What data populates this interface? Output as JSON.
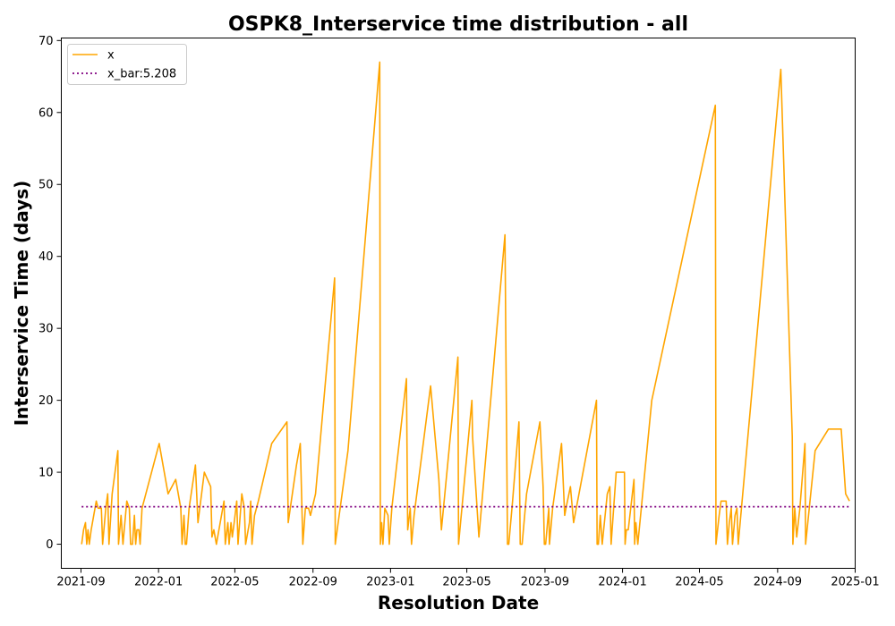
{
  "chart_data": {
    "type": "line",
    "title": "OSPK8_Interservice time distribution - all",
    "xlabel": "Resolution Date",
    "ylabel": "Interservice Time (days)",
    "x_axis_type": "date",
    "xlim": [
      "2021-08-01",
      "2025-01-01"
    ],
    "ylim": [
      -3.35,
      70.35
    ],
    "x_ticks": [
      "2021-09",
      "2022-01",
      "2022-05",
      "2022-09",
      "2023-01",
      "2023-05",
      "2023-09",
      "2024-01",
      "2024-05",
      "2024-09",
      "2025-01"
    ],
    "y_ticks": [
      0,
      10,
      20,
      30,
      40,
      50,
      60,
      70
    ],
    "grid": false,
    "legend_position": "top-left",
    "series": [
      {
        "name": "x",
        "color": "#ffa500",
        "style": "solid",
        "points": [
          [
            "2021-09-02",
            0
          ],
          [
            "2021-09-05",
            2
          ],
          [
            "2021-09-08",
            3
          ],
          [
            "2021-09-10",
            0
          ],
          [
            "2021-09-12",
            2
          ],
          [
            "2021-09-14",
            0
          ],
          [
            "2021-09-17",
            2
          ],
          [
            "2021-09-25",
            6
          ],
          [
            "2021-09-28",
            5
          ],
          [
            "2021-10-03",
            5
          ],
          [
            "2021-10-05",
            0
          ],
          [
            "2021-10-10",
            5
          ],
          [
            "2021-10-13",
            7
          ],
          [
            "2021-10-15",
            0
          ],
          [
            "2021-10-20",
            7
          ],
          [
            "2021-10-29",
            13
          ],
          [
            "2021-10-30",
            0
          ],
          [
            "2021-11-03",
            4
          ],
          [
            "2021-11-06",
            0
          ],
          [
            "2021-11-12",
            6
          ],
          [
            "2021-11-16",
            5
          ],
          [
            "2021-11-18",
            0
          ],
          [
            "2021-11-21",
            0
          ],
          [
            "2021-11-24",
            4
          ],
          [
            "2021-11-26",
            0
          ],
          [
            "2021-11-28",
            2
          ],
          [
            "2021-12-01",
            2
          ],
          [
            "2021-12-03",
            0
          ],
          [
            "2021-12-06",
            5
          ],
          [
            "2022-01-02",
            14
          ],
          [
            "2022-01-16",
            7
          ],
          [
            "2022-01-28",
            9
          ],
          [
            "2022-02-05",
            5
          ],
          [
            "2022-02-07",
            0
          ],
          [
            "2022-02-10",
            4
          ],
          [
            "2022-02-12",
            0
          ],
          [
            "2022-02-14",
            0
          ],
          [
            "2022-02-18",
            5
          ],
          [
            "2022-02-28",
            11
          ],
          [
            "2022-03-04",
            3
          ],
          [
            "2022-03-14",
            10
          ],
          [
            "2022-03-24",
            8
          ],
          [
            "2022-03-26",
            1
          ],
          [
            "2022-03-29",
            2
          ],
          [
            "2022-04-02",
            0
          ],
          [
            "2022-04-06",
            2
          ],
          [
            "2022-04-14",
            6
          ],
          [
            "2022-04-16",
            0
          ],
          [
            "2022-04-20",
            3
          ],
          [
            "2022-04-22",
            0
          ],
          [
            "2022-04-25",
            3
          ],
          [
            "2022-04-27",
            1
          ],
          [
            "2022-04-30",
            3
          ],
          [
            "2022-05-04",
            6
          ],
          [
            "2022-05-06",
            0
          ],
          [
            "2022-05-12",
            7
          ],
          [
            "2022-05-16",
            5
          ],
          [
            "2022-05-18",
            0
          ],
          [
            "2022-05-24",
            3
          ],
          [
            "2022-05-26",
            6
          ],
          [
            "2022-05-28",
            0
          ],
          [
            "2022-06-01",
            4
          ],
          [
            "2022-06-07",
            6
          ],
          [
            "2022-06-28",
            14
          ],
          [
            "2022-07-22",
            17
          ],
          [
            "2022-07-24",
            3
          ],
          [
            "2022-08-06",
            11
          ],
          [
            "2022-08-12",
            14
          ],
          [
            "2022-08-16",
            0
          ],
          [
            "2022-08-20",
            5
          ],
          [
            "2022-08-25",
            5
          ],
          [
            "2022-08-28",
            4
          ],
          [
            "2022-09-05",
            7
          ],
          [
            "2022-10-05",
            37
          ],
          [
            "2022-10-06",
            0
          ],
          [
            "2022-10-26",
            13
          ],
          [
            "2022-12-15",
            67
          ],
          [
            "2022-12-16",
            0
          ],
          [
            "2022-12-18",
            3
          ],
          [
            "2022-12-20",
            0
          ],
          [
            "2022-12-23",
            5
          ],
          [
            "2022-12-28",
            4
          ],
          [
            "2022-12-30",
            0
          ],
          [
            "2023-01-03",
            5
          ],
          [
            "2023-01-26",
            23
          ],
          [
            "2023-01-28",
            2
          ],
          [
            "2023-02-01",
            5
          ],
          [
            "2023-02-03",
            0
          ],
          [
            "2023-02-07",
            4
          ],
          [
            "2023-03-05",
            22
          ],
          [
            "2023-03-18",
            9
          ],
          [
            "2023-03-22",
            2
          ],
          [
            "2023-04-17",
            26
          ],
          [
            "2023-04-18",
            0
          ],
          [
            "2023-05-09",
            20
          ],
          [
            "2023-05-10",
            15
          ],
          [
            "2023-05-20",
            1
          ],
          [
            "2023-06-30",
            43
          ],
          [
            "2023-07-04",
            0
          ],
          [
            "2023-07-06",
            0
          ],
          [
            "2023-07-12",
            6
          ],
          [
            "2023-07-22",
            17
          ],
          [
            "2023-07-24",
            0
          ],
          [
            "2023-07-27",
            0
          ],
          [
            "2023-08-03",
            7
          ],
          [
            "2023-08-24",
            17
          ],
          [
            "2023-08-29",
            8
          ],
          [
            "2023-08-31",
            0
          ],
          [
            "2023-09-02",
            0
          ],
          [
            "2023-09-04",
            2
          ],
          [
            "2023-09-07",
            5
          ],
          [
            "2023-09-08",
            0
          ],
          [
            "2023-09-13",
            5
          ],
          [
            "2023-09-27",
            14
          ],
          [
            "2023-10-02",
            4
          ],
          [
            "2023-10-04",
            5
          ],
          [
            "2023-10-11",
            8
          ],
          [
            "2023-10-16",
            3
          ],
          [
            "2023-11-21",
            20
          ],
          [
            "2023-11-22",
            0
          ],
          [
            "2023-11-24",
            0
          ],
          [
            "2023-11-27",
            4
          ],
          [
            "2023-11-30",
            0
          ],
          [
            "2023-12-08",
            7
          ],
          [
            "2023-12-12",
            8
          ],
          [
            "2023-12-14",
            0
          ],
          [
            "2023-12-22",
            10
          ],
          [
            "2024-01-04",
            10
          ],
          [
            "2024-01-05",
            0
          ],
          [
            "2024-01-07",
            2
          ],
          [
            "2024-01-10",
            2
          ],
          [
            "2024-01-19",
            9
          ],
          [
            "2024-01-20",
            0
          ],
          [
            "2024-01-22",
            3
          ],
          [
            "2024-01-25",
            0
          ],
          [
            "2024-02-16",
            20
          ],
          [
            "2024-05-26",
            61
          ],
          [
            "2024-05-27",
            0
          ],
          [
            "2024-06-01",
            4
          ],
          [
            "2024-06-04",
            6
          ],
          [
            "2024-06-12",
            6
          ],
          [
            "2024-06-14",
            0
          ],
          [
            "2024-06-17",
            3
          ],
          [
            "2024-06-20",
            5
          ],
          [
            "2024-06-22",
            0
          ],
          [
            "2024-06-26",
            4
          ],
          [
            "2024-06-29",
            5
          ],
          [
            "2024-07-01",
            0
          ],
          [
            "2024-09-06",
            66
          ],
          [
            "2024-09-24",
            15
          ],
          [
            "2024-09-25",
            0
          ],
          [
            "2024-09-28",
            5
          ],
          [
            "2024-10-01",
            1
          ],
          [
            "2024-10-06",
            5
          ],
          [
            "2024-10-14",
            14
          ],
          [
            "2024-10-15",
            0
          ],
          [
            "2024-10-30",
            13
          ],
          [
            "2024-11-20",
            16
          ],
          [
            "2024-12-10",
            16
          ],
          [
            "2024-12-17",
            7
          ],
          [
            "2024-12-23",
            6
          ]
        ]
      },
      {
        "name": "x_bar:5.208",
        "color": "#800080",
        "style": "dotted",
        "points": [
          [
            "2021-09-02",
            5.208
          ],
          [
            "2024-12-23",
            5.208
          ]
        ]
      }
    ]
  }
}
